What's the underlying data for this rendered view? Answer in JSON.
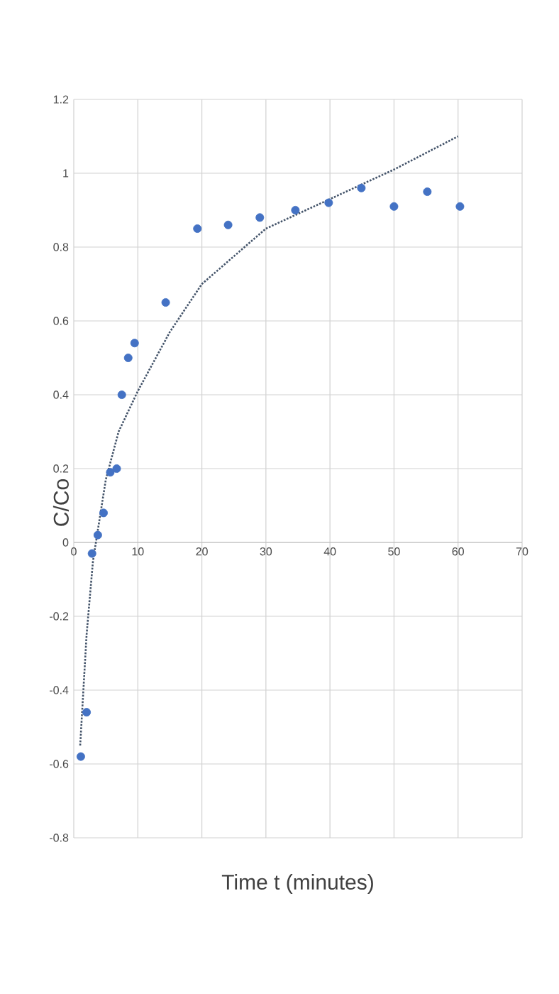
{
  "chart_data": {
    "type": "scatter",
    "xlabel": "Time t (minutes)",
    "ylabel": "C/Co",
    "xlim": [
      0,
      70
    ],
    "xticks": [
      0,
      10,
      20,
      30,
      40,
      50,
      60,
      70
    ],
    "ylim": [
      -0.8,
      1.2
    ],
    "yticks": [
      -0.8,
      -0.6,
      -0.4,
      -0.2,
      0,
      0.2,
      0.4,
      0.6,
      0.8,
      1,
      1.2
    ],
    "grid": true,
    "series": [
      {
        "marker": "circle",
        "color": "#4472c4",
        "x": [
          1.1,
          2,
          2.85,
          3.75,
          4.65,
          5.7,
          6.7,
          7.5,
          8.5,
          9.5,
          14.35,
          19.3,
          24.1,
          29.05,
          34.6,
          39.8,
          44.9,
          50,
          55.2,
          60.3
        ],
        "values": [
          -0.58,
          -0.46,
          -0.03,
          0.02,
          0.08,
          0.19,
          0.2,
          0.4,
          0.5,
          0.54,
          0.65,
          0.85,
          0.86,
          0.88,
          0.9,
          0.92,
          0.96,
          0.91,
          0.95,
          0.91
        ]
      },
      {
        "type": "line",
        "marker": "none",
        "line_style": "dotted",
        "color": "#44546a",
        "x": [
          1,
          2,
          3,
          5,
          7,
          10,
          15,
          20,
          30,
          40,
          50,
          60
        ],
        "values": [
          -0.55,
          -0.25,
          -0.05,
          0.17,
          0.3,
          0.41,
          0.57,
          0.7,
          0.85,
          0.93,
          1.01,
          1.1
        ]
      }
    ]
  }
}
